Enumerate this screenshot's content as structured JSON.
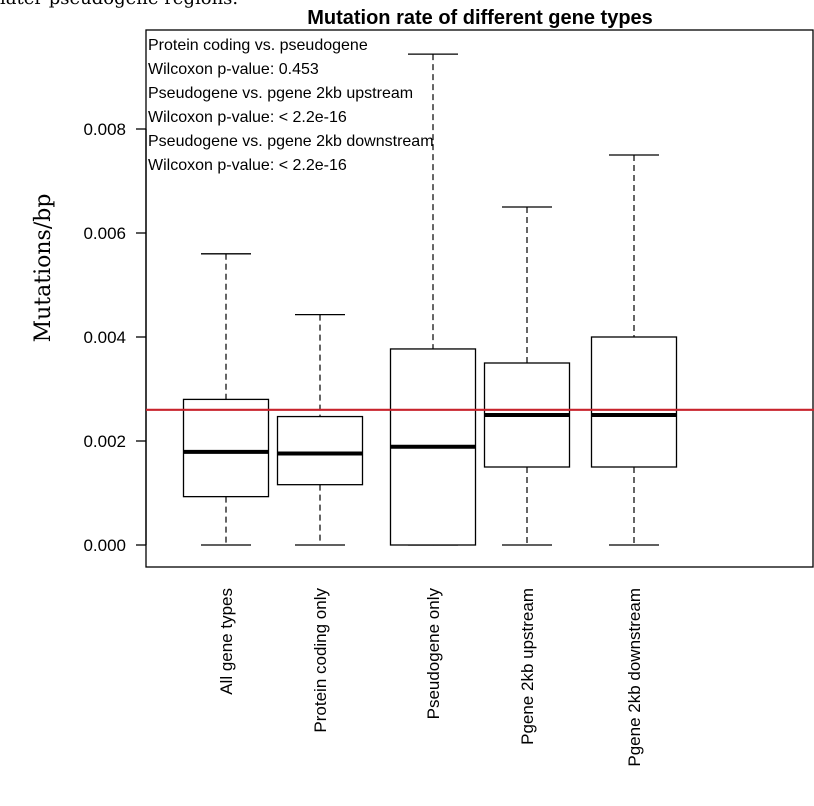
{
  "caption": "later pseudogene regions.",
  "chart_data": {
    "type": "box",
    "title": "Mutation rate of different gene types",
    "xlabel": "",
    "ylabel": "Mutations/bp",
    "ylim": [
      -0.0004,
      0.0098
    ],
    "yticks": [
      "0.000",
      "0.002",
      "0.004",
      "0.006",
      "0.008"
    ],
    "ytick_values": [
      0,
      0.002,
      0.004,
      0.006,
      0.008
    ],
    "categories": [
      "All gene types",
      "Protein coding only",
      "Pseudogene only",
      "Pgene 2kb upstream",
      "Pgene 2kb downstream"
    ],
    "boxes": [
      {
        "category": "All gene types",
        "whisker_low": 0.0,
        "q1": 0.00093,
        "median": 0.00179,
        "q3": 0.0028,
        "whisker_high": 0.0056
      },
      {
        "category": "Protein coding only",
        "whisker_low": 0.0,
        "q1": 0.00116,
        "median": 0.00176,
        "q3": 0.00247,
        "whisker_high": 0.00443
      },
      {
        "category": "Pseudogene only",
        "whisker_low": 0.0,
        "q1": 0.0,
        "median": 0.00189,
        "q3": 0.00377,
        "whisker_high": 0.00944
      },
      {
        "category": "Pgene 2kb upstream",
        "whisker_low": 0.0,
        "q1": 0.0015,
        "median": 0.0025,
        "q3": 0.0035,
        "whisker_high": 0.0065
      },
      {
        "category": "Pgene 2kb downstream",
        "whisker_low": 0.0,
        "q1": 0.0015,
        "median": 0.0025,
        "q3": 0.004,
        "whisker_high": 0.0075
      }
    ],
    "reference_line": {
      "value": 0.0026,
      "color": "#c8232c"
    },
    "annotations": [
      "Protein coding vs. pseudogene",
      "Wilcoxon p-value: 0.453",
      "Pseudogene vs. pgene 2kb upstream",
      "Wilcoxon p-value: < 2.2e-16",
      "Pseudogene vs. pgene 2kb downstream",
      "Wilcoxon p-value: < 2.2e-16"
    ],
    "grid": false,
    "legend": "none"
  }
}
